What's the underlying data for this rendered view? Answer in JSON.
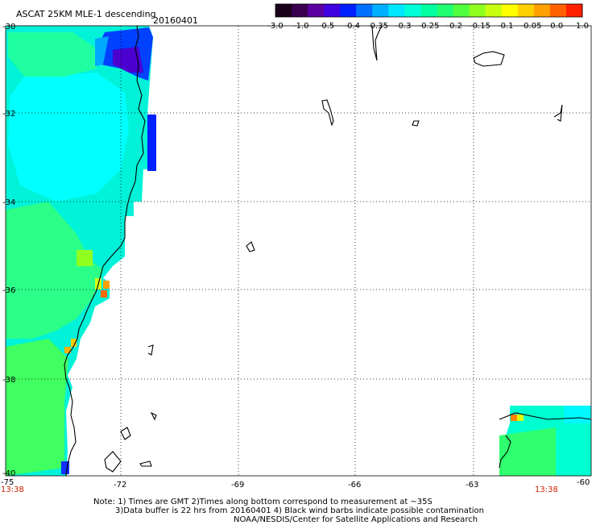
{
  "header": {
    "title": "ASCAT 25KM MLE-1 descending",
    "date": "20160401"
  },
  "colorbar": {
    "labels": [
      "-3.0",
      "-1.0",
      "-0.5",
      "-0.4",
      "-0.35",
      "-0.3",
      "-0.25",
      "-0.2",
      "-0.15",
      "-0.1",
      "-0.05",
      "0.0",
      "1.0"
    ],
    "colors": [
      "#1a0018",
      "#3a0050",
      "#5a00a0",
      "#4000e0",
      "#0020ff",
      "#0070ff",
      "#00b0ff",
      "#00e8ff",
      "#00ffd8",
      "#00ffa0",
      "#20ff70",
      "#50ff40",
      "#90ff20",
      "#c8ff10",
      "#ffff00",
      "#ffd000",
      "#ffa000",
      "#ff6000",
      "#ff2000"
    ]
  },
  "axes": {
    "lat_labels": [
      "-30",
      "-32",
      "-34",
      "-36",
      "-38",
      "-40"
    ],
    "lon_labels": [
      "-75",
      "-72",
      "-69",
      "-66",
      "-63",
      "-60"
    ]
  },
  "times": {
    "left": "13:38",
    "right": "13:38"
  },
  "notes": {
    "line1": "Note: 1) Times are GMT 2)Times along bottom correspond to measurement at ~35S",
    "line2": "3)Data buffer is 22 hrs from 20160401 4) Black wind barbs indicate possible contamination",
    "line3": "NOAA/NESDIS/Center for Satellite Applications and Research"
  }
}
